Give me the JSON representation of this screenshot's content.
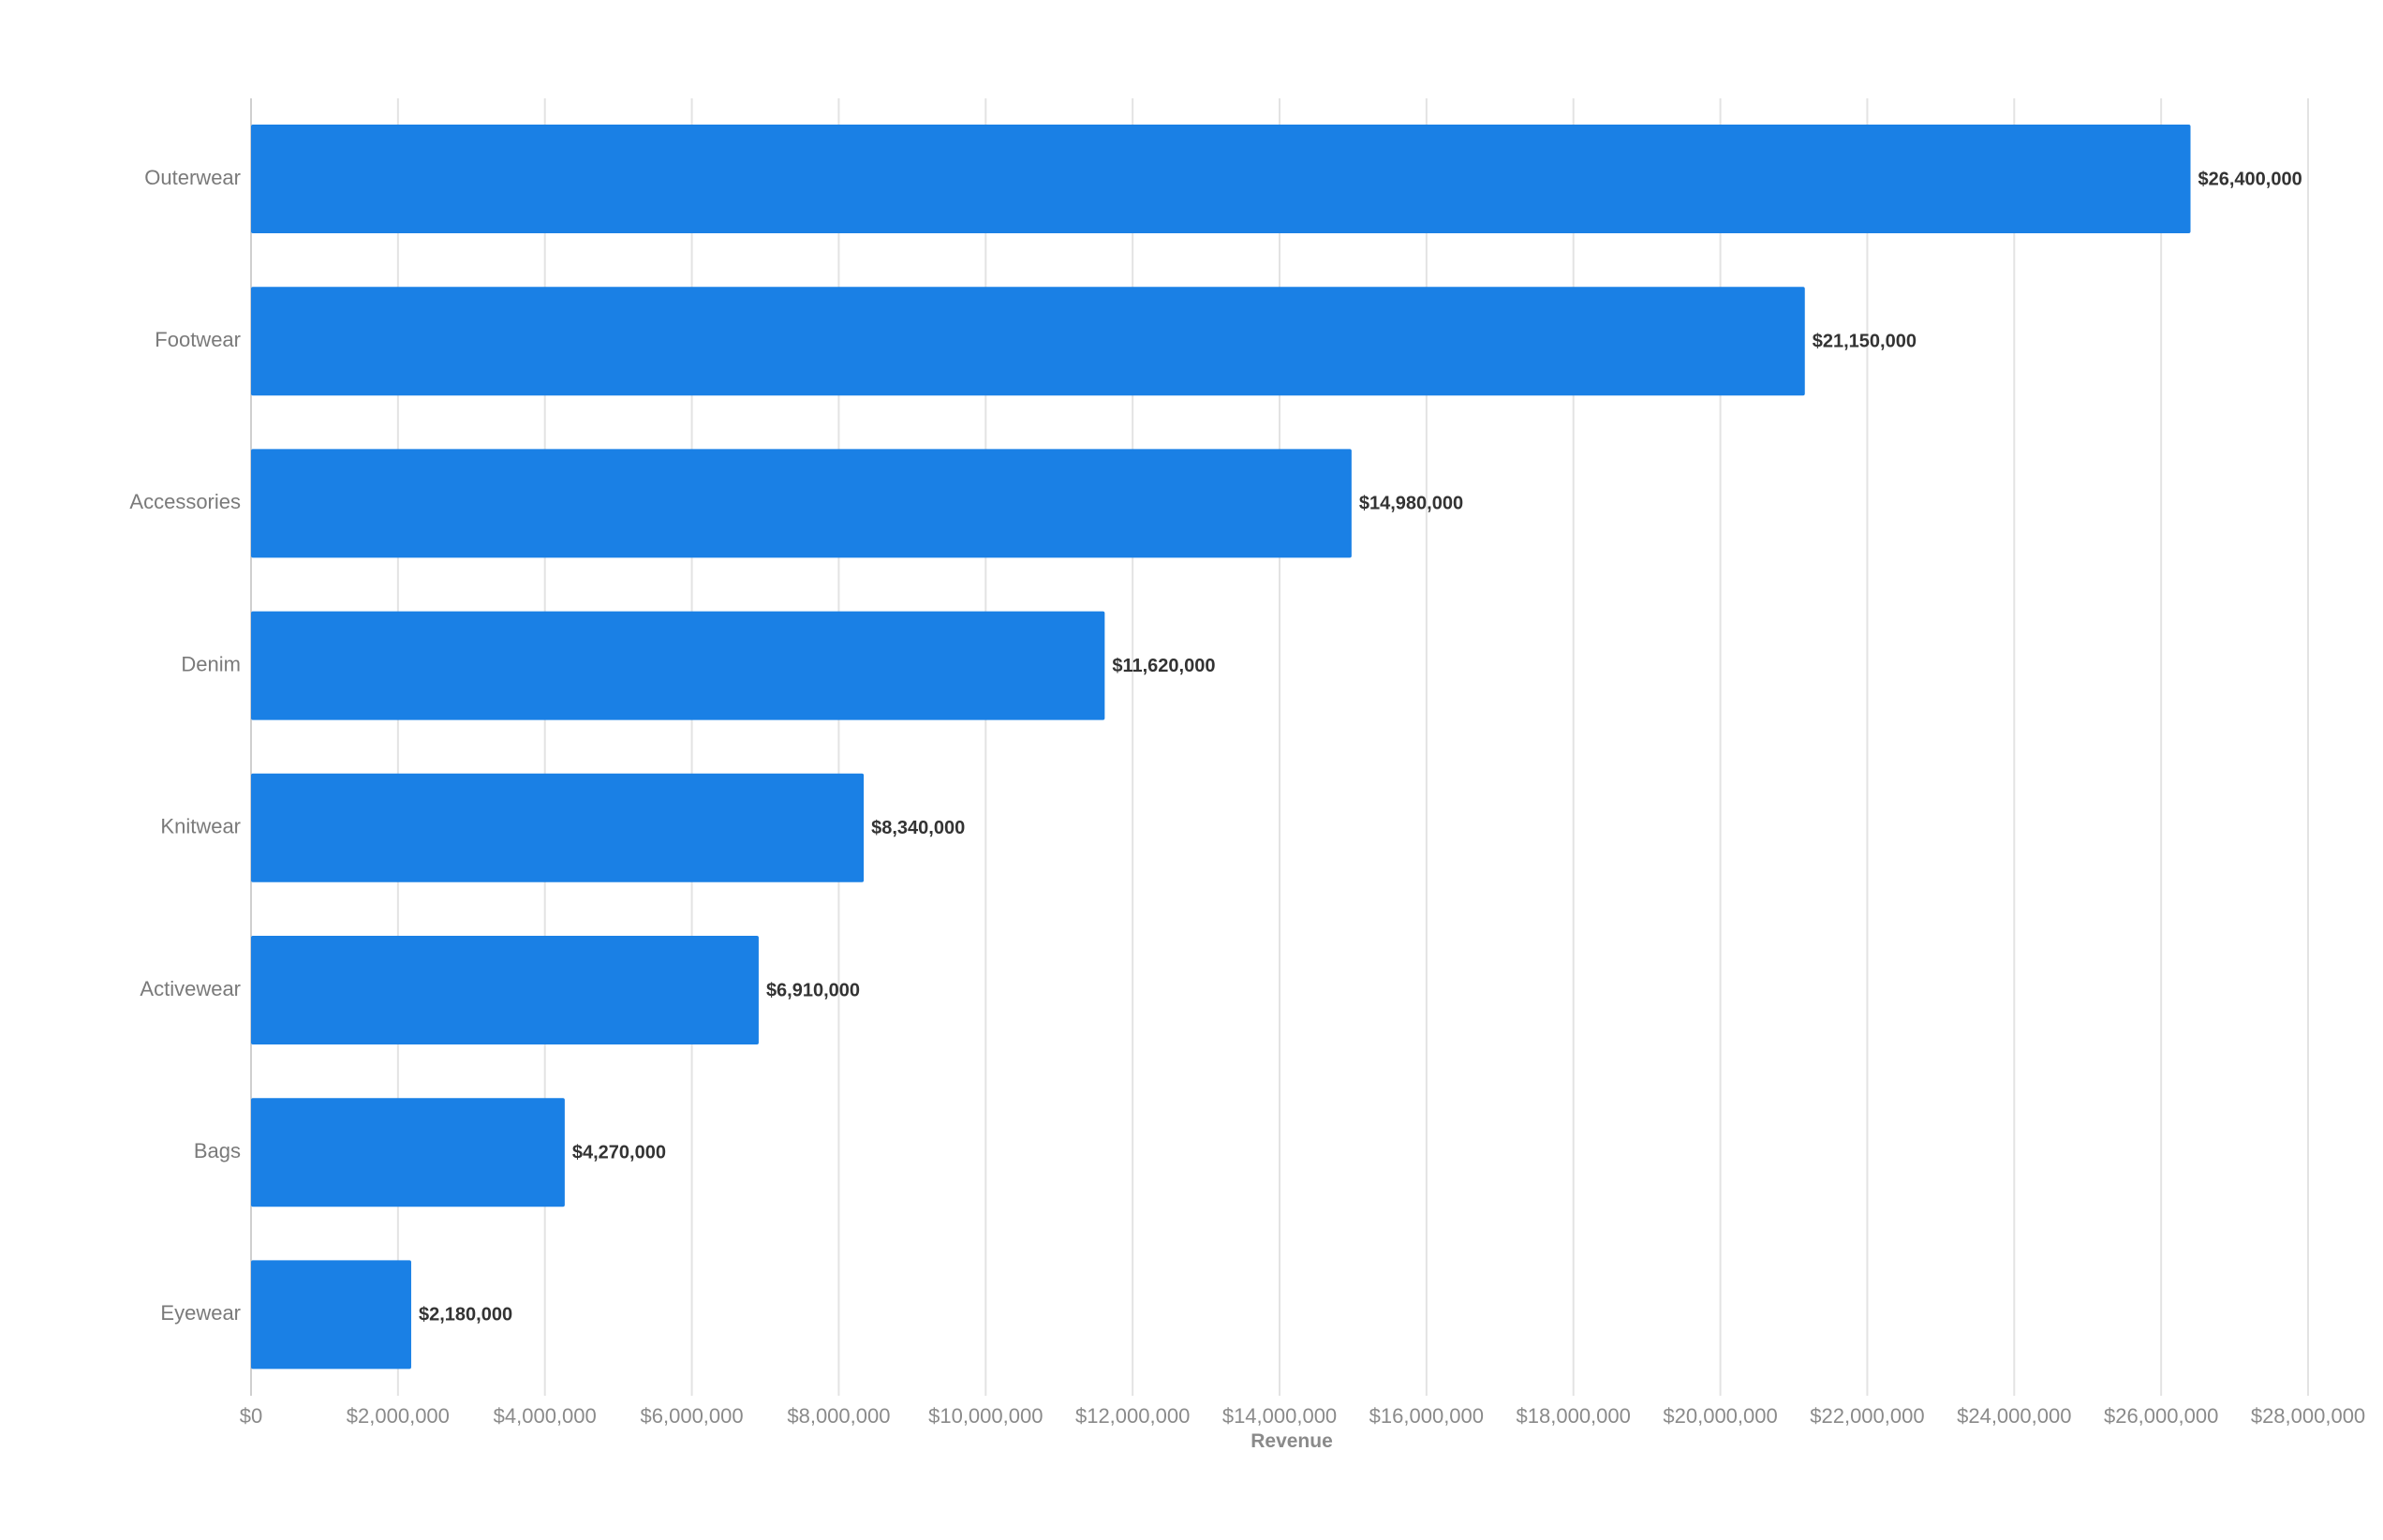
{
  "chart_data": {
    "type": "bar",
    "orientation": "horizontal",
    "categories": [
      "Outerwear",
      "Footwear",
      "Accessories",
      "Denim",
      "Knitwear",
      "Activewear",
      "Bags",
      "Eyewear"
    ],
    "values": [
      26400000,
      21150000,
      14980000,
      11620000,
      8340000,
      6910000,
      4270000,
      2180000
    ],
    "value_labels": [
      "$26,400,000",
      "$21,150,000",
      "$14,980,000",
      "$11,620,000",
      "$8,340,000",
      "$6,910,000",
      "$4,270,000",
      "$2,180,000"
    ],
    "xlabel": "Revenue",
    "ylabel": "",
    "xlim": [
      0,
      28000000
    ],
    "x_ticks": [
      0,
      2000000,
      4000000,
      6000000,
      8000000,
      10000000,
      12000000,
      14000000,
      16000000,
      18000000,
      20000000,
      22000000,
      24000000,
      26000000,
      28000000
    ],
    "x_tick_labels": [
      "$0",
      "$2,000,000",
      "$4,000,000",
      "$6,000,000",
      "$8,000,000",
      "$10,000,000",
      "$12,000,000",
      "$14,000,000",
      "$16,000,000",
      "$18,000,000",
      "$20,000,000",
      "$22,000,000",
      "$24,000,000",
      "$26,000,000",
      "$28,000,000"
    ],
    "grid": true,
    "legend": "none",
    "bar_color": "#1a80e5"
  }
}
